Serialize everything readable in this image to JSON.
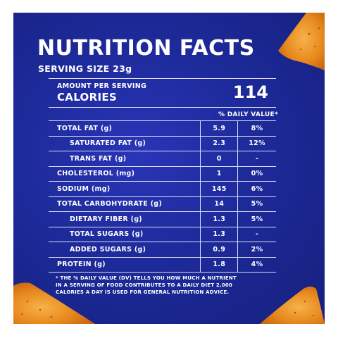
{
  "panel": {
    "background_color": "#1d2a9a",
    "chip_color": "#e88a1e"
  },
  "header": {
    "title": "NUTRITION FACTS",
    "serving_size": "SERVING SIZE 23g"
  },
  "calories": {
    "amount_label": "AMOUNT PER SERVING",
    "label": "CALORIES",
    "value": "114"
  },
  "daily_value_header": "% DAILY VALUE*",
  "nutrients": [
    {
      "name": "TOTAL FAT (g)",
      "amount": "5.9",
      "dv": "8%"
    },
    {
      "name": "SATURATED FAT (g)",
      "amount": "2.3",
      "dv": "12%"
    },
    {
      "name": "TRANS FAT (g)",
      "amount": "0",
      "dv": "-"
    },
    {
      "name": "CHOLESTEROL (mg)",
      "amount": "1",
      "dv": "0%"
    },
    {
      "name": "SODIUM (mg)",
      "amount": "145",
      "dv": "6%"
    },
    {
      "name": "TOTAL CARBOHYDRATE (g)",
      "amount": "14",
      "dv": "5%"
    },
    {
      "name": "DIETARY FIBER (g)",
      "amount": "1.3",
      "dv": "5%"
    },
    {
      "name": "TOTAL SUGARS (g)",
      "amount": "1.3",
      "dv": "-"
    },
    {
      "name": "ADDED SUGARS (g)",
      "amount": "0.9",
      "dv": "2%"
    },
    {
      "name": "PROTEIN (g)",
      "amount": "1.8",
      "dv": "4%"
    }
  ],
  "footnote": {
    "line1": "* THE % DAILY VALUE (DV) TELLS YOU HOW MUCH A NUTRIENT",
    "line2": "IN A SERVING OF FOOD CONTRIBUTES TO A DAILY DIET 2,000",
    "line3": "CALORIES A DAY IS USED FOR GENERAL NUTRITION ADVICE."
  }
}
